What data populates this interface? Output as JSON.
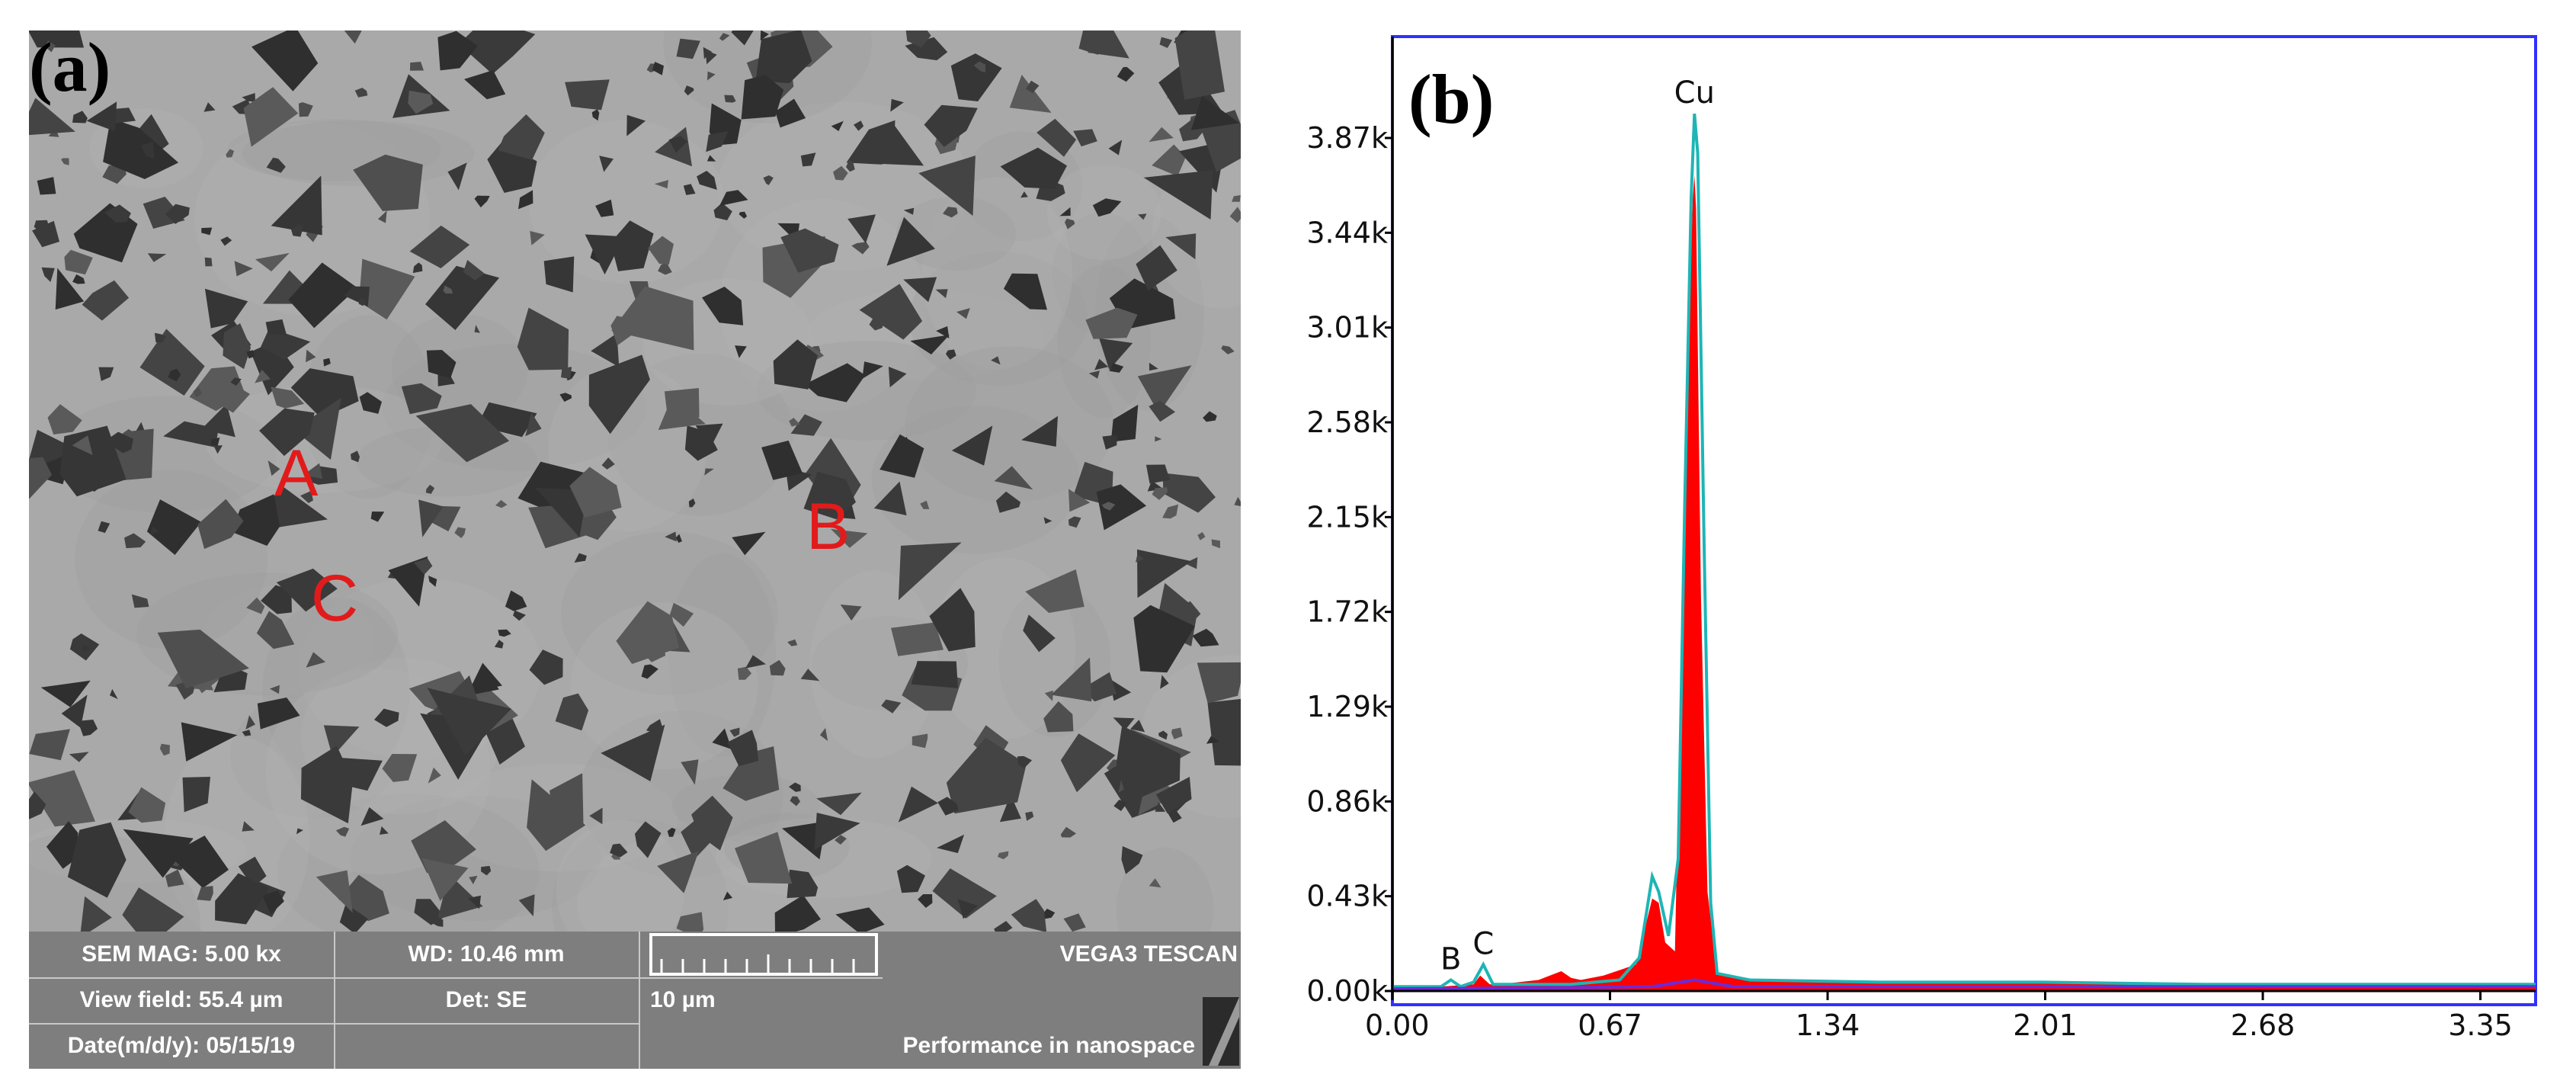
{
  "panel_a": {
    "label": "(a)",
    "sites": [
      "A",
      "B",
      "C"
    ],
    "info": {
      "sem_mag": "SEM MAG: 5.00 kx",
      "wd": "WD: 10.46 mm",
      "brand": "VEGA3 TESCAN",
      "view_field": "View field: 55.4 µm",
      "det": "Det: SE",
      "scale_label": "10 µm",
      "date": "Date(m/d/y): 05/15/19",
      "slogan": "Performance in nanospace"
    },
    "colors": {
      "site": "#e11b1b",
      "matrix": "#a9a9a9",
      "particle": "#3a3a3a"
    }
  },
  "chart_data": {
    "type": "line",
    "label": "(b)",
    "x_ticks": [
      "0.00",
      "0.67",
      "1.34",
      "2.01",
      "2.68",
      "3.35"
    ],
    "y_ticks": [
      "0.00k",
      "0.43k",
      "0.86k",
      "1.29k",
      "1.72k",
      "2.15k",
      "2.58k",
      "3.01k",
      "3.44k",
      "3.87k"
    ],
    "xlim": [
      0,
      3.52
    ],
    "ylim": [
      0,
      4.33
    ],
    "peaks": [
      {
        "label": "B",
        "x": 0.18,
        "y": 0.05
      },
      {
        "label": "C",
        "x": 0.28,
        "y": 0.12
      },
      {
        "label": "Cu",
        "x": 0.93,
        "y": 3.98
      }
    ],
    "series": [
      {
        "name": "spectrum-fill",
        "color": "#ff0000",
        "x": [
          0.0,
          0.15,
          0.25,
          0.27,
          0.3,
          0.33,
          0.45,
          0.52,
          0.55,
          0.58,
          0.65,
          0.75,
          0.8,
          0.82,
          0.84,
          0.87,
          0.89,
          0.91,
          0.925,
          0.93,
          0.935,
          0.95,
          0.97,
          1.0,
          1.1,
          1.5,
          2.0,
          2.5,
          3.0,
          3.52
        ],
        "y": [
          0.02,
          0.02,
          0.03,
          0.07,
          0.03,
          0.03,
          0.05,
          0.09,
          0.06,
          0.05,
          0.07,
          0.12,
          0.42,
          0.4,
          0.22,
          0.18,
          1.6,
          2.9,
          3.6,
          3.7,
          3.55,
          1.8,
          0.45,
          0.08,
          0.05,
          0.04,
          0.04,
          0.03,
          0.03,
          0.03
        ]
      },
      {
        "name": "fit-line",
        "color": "#1fb5b5",
        "x": [
          0.0,
          0.15,
          0.18,
          0.21,
          0.25,
          0.28,
          0.31,
          0.4,
          0.55,
          0.7,
          0.76,
          0.8,
          0.82,
          0.85,
          0.88,
          0.9,
          0.92,
          0.93,
          0.94,
          0.96,
          0.98,
          1.0,
          1.1,
          1.5,
          2.0,
          2.5,
          3.0,
          3.52
        ],
        "y": [
          0.02,
          0.02,
          0.05,
          0.02,
          0.04,
          0.12,
          0.03,
          0.03,
          0.03,
          0.05,
          0.15,
          0.52,
          0.45,
          0.25,
          0.6,
          2.2,
          3.6,
          3.98,
          3.8,
          2.0,
          0.4,
          0.08,
          0.05,
          0.04,
          0.04,
          0.03,
          0.03,
          0.03
        ]
      },
      {
        "name": "background",
        "color": "#6a2bd8",
        "x": [
          0.0,
          0.5,
          0.8,
          0.93,
          1.05,
          1.5,
          2.0,
          3.0,
          3.52
        ],
        "y": [
          0.01,
          0.015,
          0.02,
          0.05,
          0.02,
          0.02,
          0.02,
          0.02,
          0.02
        ]
      }
    ],
    "colors": {
      "frame": "#3030ff",
      "axis": "#000000"
    }
  }
}
